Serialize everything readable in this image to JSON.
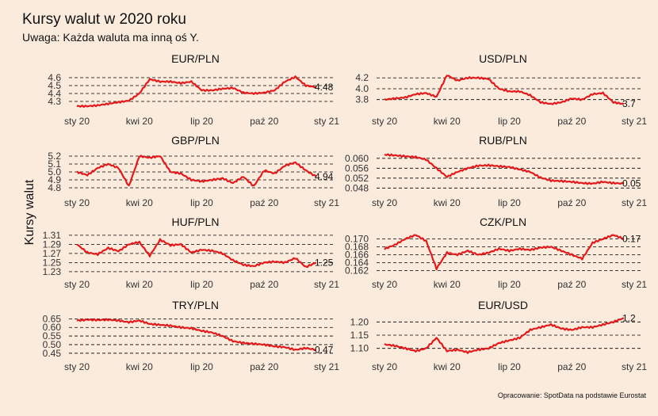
{
  "title": "Kursy walut w 2020 roku",
  "subtitle": "Uwaga: Każda waluta ma inną oś Y.",
  "ylabel": "Kursy walut",
  "caption": "Opracowanie: SpotData na podstawie Eurostat",
  "colors": {
    "background": "#FAEBDD",
    "line": "#E31A1C",
    "grid": "#000000",
    "text": "#111111"
  },
  "chart_data": [
    {
      "type": "line",
      "title": "EUR/PLN",
      "x_ticks": [
        "sty 20",
        "kwi 20",
        "lip 20",
        "paź 20",
        "sty 21"
      ],
      "y_ticks": [
        "4.6",
        "4.5",
        "4.4",
        "4.3"
      ],
      "y_tick_values": [
        4.6,
        4.5,
        4.4,
        4.3
      ],
      "ylim": [
        4.22,
        4.68
      ],
      "grid": "horizontal dashed",
      "last_label": "4.48",
      "x_months": [
        0.0,
        0.5,
        1.0,
        1.5,
        2.0,
        2.5,
        3.0,
        3.5,
        4.0,
        4.5,
        5.0,
        5.5,
        6.0,
        6.5,
        7.0,
        7.5,
        8.0,
        8.5,
        9.0,
        9.5,
        10.0,
        10.5,
        11.0,
        11.5
      ],
      "y": [
        4.24,
        4.24,
        4.25,
        4.27,
        4.29,
        4.31,
        4.4,
        4.58,
        4.55,
        4.55,
        4.53,
        4.55,
        4.44,
        4.44,
        4.46,
        4.47,
        4.41,
        4.4,
        4.41,
        4.44,
        4.55,
        4.61,
        4.5,
        4.48
      ]
    },
    {
      "type": "line",
      "title": "USD/PLN",
      "x_ticks": [
        "sty 20",
        "kwi 20",
        "lip 20",
        "paź 20",
        "sty 21"
      ],
      "y_ticks": [
        "4.2",
        "4.0",
        "3.8"
      ],
      "y_tick_values": [
        4.2,
        4.0,
        3.8
      ],
      "ylim": [
        3.65,
        4.32
      ],
      "grid": "horizontal dashed",
      "last_label": "3.7",
      "x_months": [
        0.0,
        0.5,
        1.0,
        1.5,
        2.0,
        2.5,
        3.0,
        3.5,
        4.0,
        4.5,
        5.0,
        5.5,
        6.0,
        6.5,
        7.0,
        7.5,
        8.0,
        8.5,
        9.0,
        9.5,
        10.0,
        10.5,
        11.0,
        11.5
      ],
      "y": [
        3.8,
        3.82,
        3.84,
        3.9,
        3.92,
        3.85,
        4.25,
        4.15,
        4.2,
        4.2,
        4.18,
        4.0,
        3.95,
        3.95,
        3.88,
        3.75,
        3.72,
        3.75,
        3.82,
        3.8,
        3.9,
        3.92,
        3.75,
        3.72
      ]
    },
    {
      "type": "line",
      "title": "GBP/PLN",
      "x_ticks": [
        "sty 20",
        "kwi 20",
        "lip 20",
        "paź 20",
        "sty 21"
      ],
      "y_ticks": [
        "5.2",
        "5.1",
        "5.0",
        "4.9",
        "4.8"
      ],
      "y_tick_values": [
        5.2,
        5.1,
        5.0,
        4.9,
        4.8
      ],
      "ylim": [
        4.75,
        5.25
      ],
      "grid": "horizontal dashed",
      "last_label": "4.94",
      "x_months": [
        0.0,
        0.5,
        1.0,
        1.5,
        2.0,
        2.5,
        3.0,
        3.5,
        4.0,
        4.5,
        5.0,
        5.5,
        6.0,
        6.5,
        7.0,
        7.5,
        8.0,
        8.5,
        9.0,
        9.5,
        10.0,
        10.5,
        11.0,
        11.5
      ],
      "y": [
        5.0,
        4.96,
        5.05,
        5.1,
        5.05,
        4.82,
        5.2,
        5.18,
        5.2,
        5.0,
        4.98,
        4.9,
        4.88,
        4.9,
        4.92,
        4.86,
        4.94,
        4.82,
        5.02,
        4.98,
        5.08,
        5.12,
        5.02,
        4.94
      ]
    },
    {
      "type": "line",
      "title": "RUB/PLN",
      "x_ticks": [
        "sty 20",
        "kwi 20",
        "lip 20",
        "paź 20",
        "sty 21"
      ],
      "y_ticks": [
        "0.060",
        "0.056",
        "0.052",
        "0.048"
      ],
      "y_tick_values": [
        0.06,
        0.056,
        0.052,
        0.048
      ],
      "ylim": [
        0.0465,
        0.0625
      ],
      "grid": "horizontal dashed",
      "last_label": "0.05",
      "x_months": [
        0.0,
        0.5,
        1.0,
        1.5,
        2.0,
        2.5,
        3.0,
        3.5,
        4.0,
        4.5,
        5.0,
        5.5,
        6.0,
        6.5,
        7.0,
        7.5,
        8.0,
        8.5,
        9.0,
        9.5,
        10.0,
        10.5,
        11.0,
        11.5
      ],
      "y": [
        0.0615,
        0.0612,
        0.0608,
        0.0605,
        0.0595,
        0.056,
        0.0525,
        0.0545,
        0.056,
        0.057,
        0.0572,
        0.0568,
        0.0565,
        0.0555,
        0.0545,
        0.0522,
        0.051,
        0.0508,
        0.0505,
        0.05,
        0.0498,
        0.0505,
        0.05,
        0.0498
      ]
    },
    {
      "type": "line",
      "title": "HUF/PLN",
      "x_ticks": [
        "sty 20",
        "kwi 20",
        "lip 20",
        "paź 20",
        "sty 21"
      ],
      "y_ticks": [
        "1.31",
        "1.29",
        "1.27",
        "1.25",
        "1.23"
      ],
      "y_tick_values": [
        1.31,
        1.29,
        1.27,
        1.25,
        1.23
      ],
      "ylim": [
        1.228,
        1.315
      ],
      "grid": "horizontal dashed",
      "last_label": "1.25",
      "x_months": [
        0.0,
        0.5,
        1.0,
        1.5,
        2.0,
        2.5,
        3.0,
        3.5,
        4.0,
        4.5,
        5.0,
        5.5,
        6.0,
        6.5,
        7.0,
        7.5,
        8.0,
        8.5,
        9.0,
        9.5,
        10.0,
        10.5,
        11.0,
        11.5
      ],
      "y": [
        1.29,
        1.272,
        1.268,
        1.282,
        1.275,
        1.29,
        1.295,
        1.265,
        1.3,
        1.288,
        1.29,
        1.272,
        1.278,
        1.276,
        1.27,
        1.255,
        1.245,
        1.242,
        1.25,
        1.252,
        1.25,
        1.26,
        1.24,
        1.25
      ]
    },
    {
      "type": "line",
      "title": "CZK/PLN",
      "x_ticks": [
        "sty 20",
        "kwi 20",
        "lip 20",
        "paź 20",
        "sty 21"
      ],
      "y_ticks": [
        "0.170",
        "0.168",
        "0.166",
        "0.164",
        "0.162"
      ],
      "y_tick_values": [
        0.17,
        0.168,
        0.166,
        0.164,
        0.162
      ],
      "ylim": [
        0.1615,
        0.1715
      ],
      "grid": "horizontal dashed",
      "last_label": "0.17",
      "x_months": [
        0.0,
        0.5,
        1.0,
        1.5,
        2.0,
        2.5,
        3.0,
        3.5,
        4.0,
        4.5,
        5.0,
        5.5,
        6.0,
        6.5,
        7.0,
        7.5,
        8.0,
        8.5,
        9.0,
        9.5,
        10.0,
        10.5,
        11.0,
        11.5
      ],
      "y": [
        0.1675,
        0.1685,
        0.17,
        0.171,
        0.1695,
        0.1625,
        0.1665,
        0.166,
        0.167,
        0.166,
        0.1665,
        0.1675,
        0.167,
        0.1675,
        0.1672,
        0.1678,
        0.168,
        0.167,
        0.166,
        0.165,
        0.169,
        0.17,
        0.171,
        0.17
      ]
    },
    {
      "type": "line",
      "title": "TRY/PLN",
      "x_ticks": [
        "sty 20",
        "kwi 20",
        "lip 20",
        "paź 20",
        "sty 21"
      ],
      "y_ticks": [
        "0.65",
        "0.60",
        "0.55",
        "0.50",
        "0.45"
      ],
      "y_tick_values": [
        0.65,
        0.6,
        0.55,
        0.5,
        0.45
      ],
      "ylim": [
        0.44,
        0.67
      ],
      "grid": "horizontal dashed",
      "last_label": "0.47",
      "x_months": [
        0.0,
        0.5,
        1.0,
        1.5,
        2.0,
        2.5,
        3.0,
        3.5,
        4.0,
        4.5,
        5.0,
        5.5,
        6.0,
        6.5,
        7.0,
        7.5,
        8.0,
        8.5,
        9.0,
        9.5,
        10.0,
        10.5,
        11.0,
        11.5
      ],
      "y": [
        0.64,
        0.645,
        0.643,
        0.645,
        0.64,
        0.63,
        0.64,
        0.62,
        0.615,
        0.61,
        0.6,
        0.595,
        0.58,
        0.57,
        0.55,
        0.52,
        0.51,
        0.505,
        0.5,
        0.49,
        0.485,
        0.47,
        0.48,
        0.47
      ]
    },
    {
      "type": "line",
      "title": "EUR/USD",
      "x_ticks": [
        "sty 20",
        "kwi 20",
        "lip 20",
        "paź 20",
        "sty 21"
      ],
      "y_ticks": [
        "1.20",
        "1.15",
        "1.10"
      ],
      "y_tick_values": [
        1.2,
        1.15,
        1.1
      ],
      "ylim": [
        1.075,
        1.225
      ],
      "grid": "horizontal dashed",
      "last_label": "1.2",
      "x_months": [
        0.0,
        0.5,
        1.0,
        1.5,
        2.0,
        2.5,
        3.0,
        3.5,
        4.0,
        4.5,
        5.0,
        5.5,
        6.0,
        6.5,
        7.0,
        7.5,
        8.0,
        8.5,
        9.0,
        9.5,
        10.0,
        10.5,
        11.0,
        11.5
      ],
      "y": [
        1.115,
        1.11,
        1.1,
        1.09,
        1.1,
        1.14,
        1.09,
        1.095,
        1.085,
        1.095,
        1.1,
        1.12,
        1.13,
        1.14,
        1.17,
        1.18,
        1.19,
        1.175,
        1.17,
        1.18,
        1.18,
        1.19,
        1.2,
        1.215
      ]
    }
  ]
}
